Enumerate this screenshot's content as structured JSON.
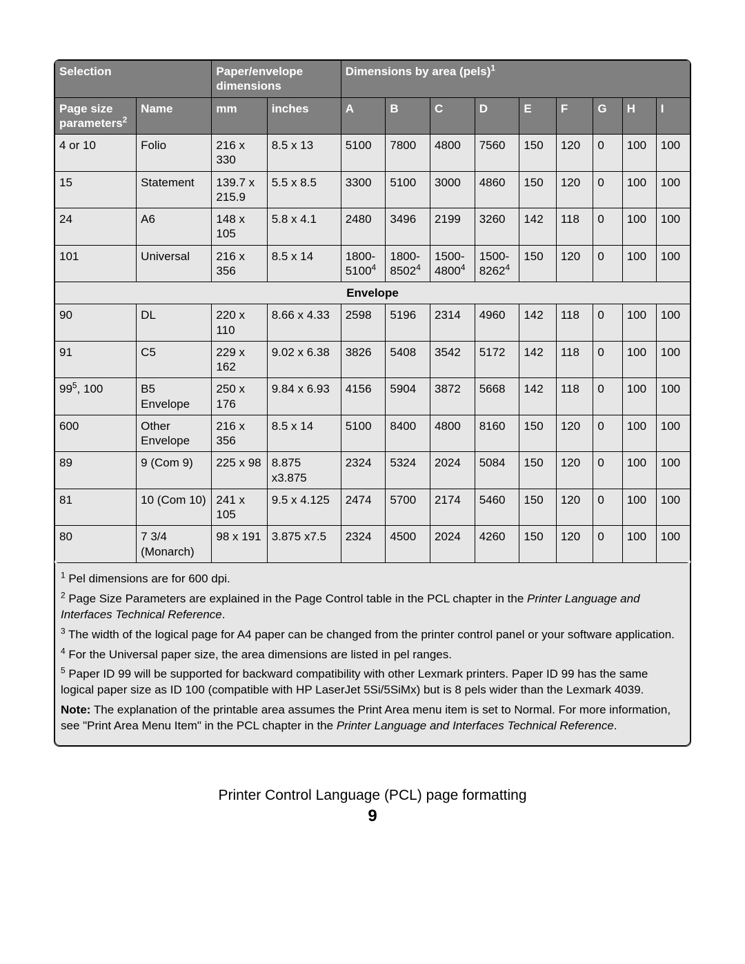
{
  "header": {
    "selection": "Selection",
    "paper_env": "Paper/envelope dimensions",
    "dims_by_area": "Dimensions by area (pels)",
    "dims_sup": "1",
    "page_size_params": "Page size parameters",
    "page_size_sup": "2",
    "name": "Name",
    "mm": "mm",
    "inches": "inches",
    "cols": [
      "A",
      "B",
      "C",
      "D",
      "E",
      "F",
      "G",
      "H",
      "I"
    ]
  },
  "rows_top": [
    {
      "sel": "4 or 10",
      "name": "Folio",
      "mm": "216 x 330",
      "in": "8.5 x 13",
      "A": "5100",
      "B": "7800",
      "C": "4800",
      "D": "7560",
      "E": "150",
      "F": "120",
      "G": "0",
      "H": "100",
      "I": "100"
    },
    {
      "sel": "15",
      "name": "Statement",
      "mm": "139.7 x 215.9",
      "in": "5.5 x 8.5",
      "A": "3300",
      "B": "5100",
      "C": "3000",
      "D": "4860",
      "E": "150",
      "F": "120",
      "G": "0",
      "H": "100",
      "I": "100"
    },
    {
      "sel": "24",
      "name": "A6",
      "mm": "148 x 105",
      "in": "5.8 x 4.1",
      "A": "2480",
      "B": "3496",
      "C": "2199",
      "D": "3260",
      "E": "142",
      "F": "118",
      "G": "0",
      "H": "100",
      "I": "100"
    },
    {
      "sel": "101",
      "name": "Universal",
      "mm": "216 x 356",
      "in": "8.5 x 14",
      "A": "1800-5100",
      "A_sup": "4",
      "B": "1800-8502",
      "B_sup": "4",
      "C": "1500-4800",
      "C_sup": "4",
      "D": "1500-8262",
      "D_sup": "4",
      "E": "150",
      "F": "120",
      "G": "0",
      "H": "100",
      "I": "100"
    }
  ],
  "envelope_label": "Envelope",
  "rows_env": [
    {
      "sel": "90",
      "name": "DL",
      "mm": "220 x 110",
      "in": "8.66 x 4.33",
      "A": "2598",
      "B": "5196",
      "C": "2314",
      "D": "4960",
      "E": "142",
      "F": "118",
      "G": "0",
      "H": "100",
      "I": "100"
    },
    {
      "sel": "91",
      "name": "C5",
      "mm": "229 x 162",
      "in": "9.02 x 6.38",
      "A": "3826",
      "B": "5408",
      "C": "3542",
      "D": "5172",
      "E": "142",
      "F": "118",
      "G": "0",
      "H": "100",
      "I": "100"
    },
    {
      "sel": "99",
      "sel_sup": "5",
      "sel_after": ", 100",
      "name": "B5 Envelope",
      "mm": "250 x 176",
      "in": "9.84 x 6.93",
      "A": "4156",
      "B": "5904",
      "C": "3872",
      "D": "5668",
      "E": "142",
      "F": "118",
      "G": "0",
      "H": "100",
      "I": "100"
    },
    {
      "sel": "600",
      "name": "Other Envelope",
      "mm": "216 x 356",
      "in": "8.5 x 14",
      "A": "5100",
      "B": "8400",
      "C": "4800",
      "D": "8160",
      "E": "150",
      "F": "120",
      "G": "0",
      "H": "100",
      "I": "100"
    },
    {
      "sel": "89",
      "name": "9 (Com 9)",
      "mm": "225 x 98",
      "in": "8.875 x3.875",
      "A": "2324",
      "B": "5324",
      "C": "2024",
      "D": "5084",
      "E": "150",
      "F": "120",
      "G": "0",
      "H": "100",
      "I": "100"
    },
    {
      "sel": "81",
      "name": "10 (Com 10)",
      "mm": "241 x 105",
      "in": "9.5 x 4.125",
      "A": "2474",
      "B": "5700",
      "C": "2174",
      "D": "5460",
      "E": "150",
      "F": "120",
      "G": "0",
      "H": "100",
      "I": "100"
    },
    {
      "sel": "80",
      "name": "7 3/4 (Monarch)",
      "mm": "98 x 191",
      "in": "3.875 x7.5",
      "A": "2324",
      "B": "4500",
      "C": "2024",
      "D": "4260",
      "E": "150",
      "F": "120",
      "G": "0",
      "H": "100",
      "I": "100"
    }
  ],
  "footnotes": {
    "n1": " Pel dimensions are for 600 dpi.",
    "n2a": " Page Size Parameters are explained in the Page Control table in the PCL chapter in the ",
    "n2_em": "Printer Language and Interfaces Technical Reference",
    "n2b": ".",
    "n3": " The width of the logical page for A4 paper can be changed from the printer control panel or your software application.",
    "n4": " For the Universal paper size, the area dimensions are listed in pel ranges.",
    "n5": " Paper ID 99 will be supported for backward compatibility with other Lexmark printers. Paper ID 99 has the same logical paper size as ID 100 (compatible with HP LaserJet 5Si/5SiMx) but is 8 pels wider than the Lexmark 4039.",
    "note_label": "Note:",
    "note_a": " The explanation of the printable area assumes the Print Area menu item is set to Normal. For more information, see \"Print Area Menu Item\" in the PCL chapter in the ",
    "note_em": "Printer Language and Interfaces Technical Reference",
    "note_b": "."
  },
  "footer": {
    "title": "Printer Control Language (PCL) page formatting",
    "page": "9"
  },
  "colwidths": {
    "c0": 106,
    "c1": 98,
    "c2": 72,
    "c3": 96,
    "c4": 58,
    "c5": 58,
    "c6": 58,
    "c7": 58,
    "c8": 48,
    "c9": 48,
    "c10": 38,
    "c11": 44,
    "c12": 44
  },
  "colors": {
    "header_bg": "#808080",
    "header_fg": "#ffffff",
    "cell_bg": "#e6e6e6",
    "border": "#000000",
    "page_bg": "#ffffff"
  },
  "fontsizes": {
    "body": 17,
    "footer_title": 21,
    "footer_num": 24
  }
}
